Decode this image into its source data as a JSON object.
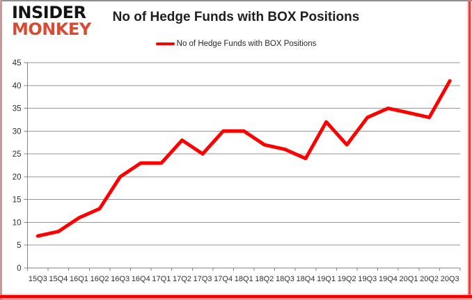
{
  "logo": {
    "line1": "INSIDER",
    "line2": "MONKEY"
  },
  "header": {
    "title": "No of Hedge Funds with BOX Positions"
  },
  "legend": {
    "label": "No of Hedge Funds with BOX Positions"
  },
  "colors": {
    "series_line": "#fe0000",
    "logo_black": "#141414",
    "logo_red": "#d74b32",
    "grid": "#969696",
    "axis": "#808080",
    "text": "#2e2e2e",
    "frame_red": "#f40000",
    "frame_gray": "#8f8f8f"
  },
  "chart_data": {
    "type": "line",
    "title": "No of Hedge Funds with BOX Positions",
    "categories": [
      "15Q3",
      "15Q4",
      "16Q1",
      "16Q2",
      "16Q3",
      "16Q4",
      "17Q1",
      "17Q2",
      "17Q3",
      "17Q4",
      "18Q1",
      "18Q2",
      "18Q3",
      "18Q4",
      "19Q1",
      "19Q2",
      "19Q3",
      "19Q4",
      "20Q1",
      "20Q2",
      "20Q3"
    ],
    "series": [
      {
        "name": "No of Hedge Funds with BOX Positions",
        "color": "#fe0000",
        "values": [
          7,
          8,
          11,
          13,
          20,
          23,
          23,
          28,
          25,
          30,
          30,
          27,
          26,
          24,
          32,
          27,
          33,
          35,
          34,
          33,
          41
        ]
      }
    ],
    "xlabel": "",
    "ylabel": "",
    "ylim": [
      0,
      45
    ],
    "ytick_step": 5,
    "yticks": [
      0,
      5,
      10,
      15,
      20,
      25,
      30,
      35,
      40,
      45
    ],
    "grid": "horizontal-only",
    "legend_position": "top-center"
  }
}
